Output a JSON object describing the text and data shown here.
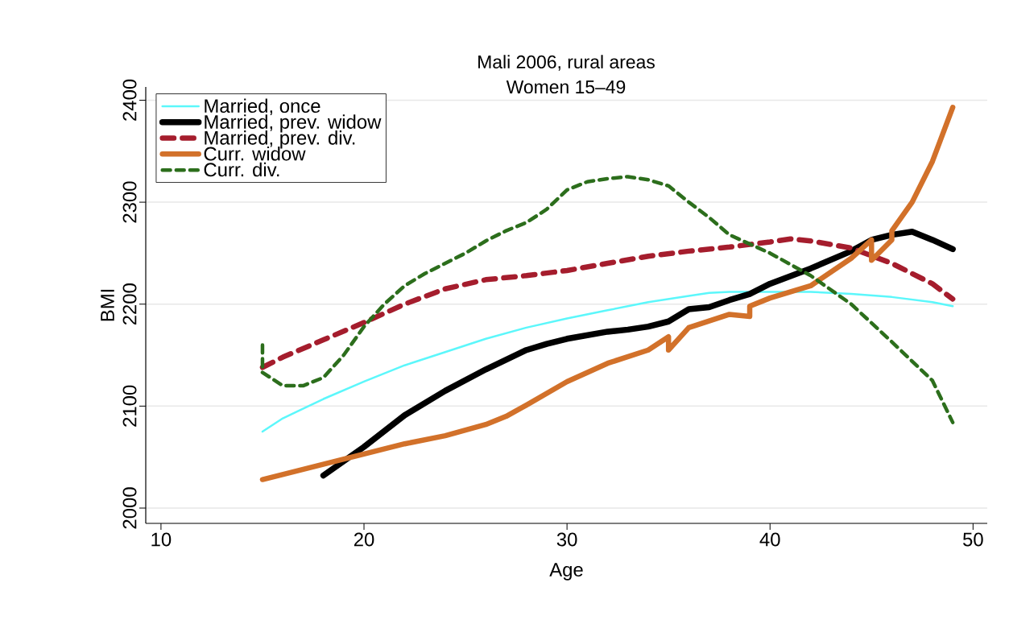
{
  "chart_data": {
    "type": "line",
    "title": "Mali 2006, rural areas",
    "subtitle": "Women 15–49",
    "xlabel": "Age",
    "ylabel": "BMI",
    "xlim": [
      9.25,
      50.7
    ],
    "ylim": [
      1985,
      2413
    ],
    "xticks": [
      10,
      20,
      30,
      40,
      50
    ],
    "yticks": [
      2000,
      2100,
      2200,
      2300,
      2400
    ],
    "grid": "y",
    "legend": "top left",
    "marker": "none",
    "series": [
      {
        "name": "Married, once",
        "color": "#5cf7fb",
        "line_style": "solid",
        "x": [
          15,
          16,
          18,
          20,
          22,
          24,
          26,
          28,
          30,
          32,
          34,
          36,
          37,
          38,
          40,
          42,
          44,
          46,
          48,
          49
        ],
        "values": [
          2075,
          2088,
          2107,
          2124,
          2140,
          2153,
          2166,
          2177,
          2186,
          2194,
          2202,
          2208,
          2211,
          2212,
          2212,
          2212,
          2210,
          2207,
          2202,
          2198
        ]
      },
      {
        "name": "Married, prev. widow",
        "color": "#000000",
        "line_style": "solid",
        "x": [
          18,
          20,
          22,
          24,
          26,
          28,
          29,
          30,
          32,
          33,
          34,
          35,
          36,
          37,
          38,
          39,
          40,
          42,
          44,
          45,
          46,
          47,
          48,
          49
        ],
        "values": [
          2032,
          2060,
          2091,
          2115,
          2136,
          2155,
          2161,
          2166,
          2173,
          2175,
          2178,
          2183,
          2195,
          2197,
          2204,
          2210,
          2220,
          2235,
          2252,
          2263,
          2268,
          2271,
          2263,
          2254
        ]
      },
      {
        "name": "Married, prev. div.",
        "color": "#a51d2d",
        "line_style": "dashed",
        "x": [
          15,
          16,
          18,
          20,
          22,
          24,
          26,
          28,
          30,
          32,
          34,
          36,
          38,
          40,
          41,
          42,
          44,
          46,
          48,
          49
        ],
        "values": [
          2138,
          2148,
          2165,
          2182,
          2200,
          2215,
          2224,
          2228,
          2233,
          2240,
          2247,
          2252,
          2256,
          2261,
          2264,
          2262,
          2255,
          2240,
          2220,
          2205
        ]
      },
      {
        "name": "Curr. widow",
        "color": "#d2712a",
        "line_style": "solid",
        "x": [
          15,
          18,
          20,
          22,
          24,
          26,
          27,
          28,
          30,
          32,
          34,
          35,
          35,
          36,
          38,
          39,
          39,
          40,
          42,
          44,
          45,
          45,
          46,
          46,
          47,
          48,
          49
        ],
        "values": [
          2028,
          2043,
          2053,
          2063,
          2071,
          2082,
          2090,
          2101,
          2124,
          2142,
          2155,
          2168,
          2155,
          2177,
          2190,
          2188,
          2198,
          2206,
          2218,
          2245,
          2263,
          2243,
          2263,
          2272,
          2300,
          2340,
          2393
        ]
      },
      {
        "name": "Curr. div.",
        "color": "#2c6e1c",
        "line_style": "dashed",
        "x": [
          15,
          15,
          16,
          17,
          18,
          19,
          20,
          21,
          22,
          23,
          24,
          25,
          26,
          27,
          28,
          29,
          30,
          31,
          32,
          33,
          34,
          35,
          36,
          37,
          38,
          40,
          42,
          44,
          46,
          48,
          49
        ],
        "values": [
          2160,
          2133,
          2120,
          2120,
          2128,
          2150,
          2178,
          2200,
          2218,
          2230,
          2240,
          2250,
          2262,
          2272,
          2280,
          2293,
          2312,
          2320,
          2323,
          2325,
          2322,
          2316,
          2300,
          2285,
          2268,
          2250,
          2228,
          2200,
          2163,
          2125,
          2084
        ]
      }
    ]
  }
}
